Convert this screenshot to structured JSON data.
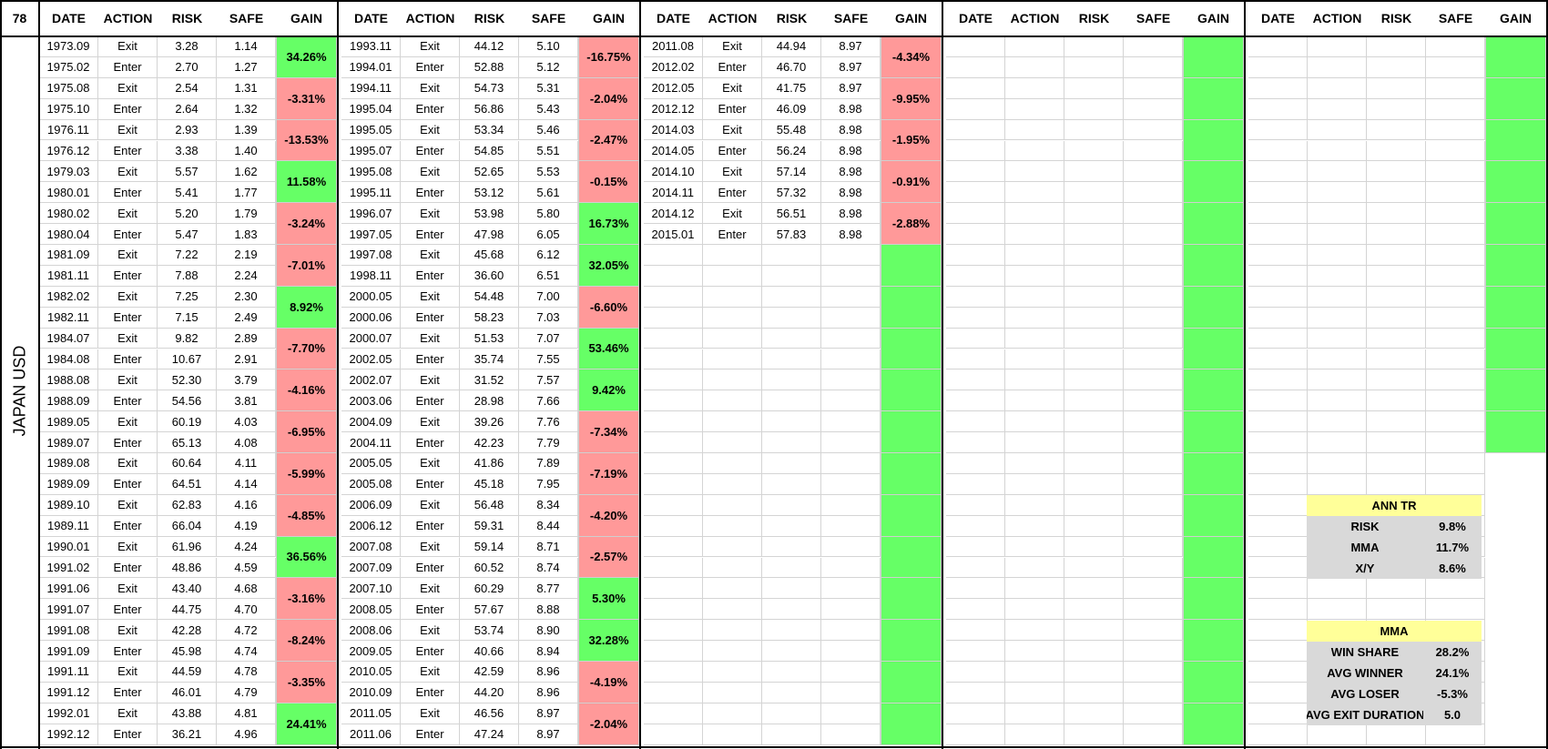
{
  "corner_label": "78",
  "side_label": "JAPAN USD",
  "headers": [
    "DATE",
    "ACTION",
    "RISK",
    "SAFE",
    "GAIN"
  ],
  "colors": {
    "win": "#66ff66",
    "loss": "#ff9999",
    "title_bg": "#ffff99",
    "stat_bg": "#d9d9d9"
  },
  "blocks": [
    {
      "rows": [
        [
          "1973.09",
          "Exit",
          "3.28",
          "1.14"
        ],
        [
          "1975.02",
          "Enter",
          "2.70",
          "1.27"
        ],
        [
          "1975.08",
          "Exit",
          "2.54",
          "1.31"
        ],
        [
          "1975.10",
          "Enter",
          "2.64",
          "1.32"
        ],
        [
          "1976.11",
          "Exit",
          "2.93",
          "1.39"
        ],
        [
          "1976.12",
          "Enter",
          "3.38",
          "1.40"
        ],
        [
          "1979.03",
          "Exit",
          "5.57",
          "1.62"
        ],
        [
          "1980.01",
          "Enter",
          "5.41",
          "1.77"
        ],
        [
          "1980.02",
          "Exit",
          "5.20",
          "1.79"
        ],
        [
          "1980.04",
          "Enter",
          "5.47",
          "1.83"
        ],
        [
          "1981.09",
          "Exit",
          "7.22",
          "2.19"
        ],
        [
          "1981.11",
          "Enter",
          "7.88",
          "2.24"
        ],
        [
          "1982.02",
          "Exit",
          "7.25",
          "2.30"
        ],
        [
          "1982.11",
          "Enter",
          "7.15",
          "2.49"
        ],
        [
          "1984.07",
          "Exit",
          "9.82",
          "2.89"
        ],
        [
          "1984.08",
          "Enter",
          "10.67",
          "2.91"
        ],
        [
          "1988.08",
          "Exit",
          "52.30",
          "3.79"
        ],
        [
          "1988.09",
          "Enter",
          "54.56",
          "3.81"
        ],
        [
          "1989.05",
          "Exit",
          "60.19",
          "4.03"
        ],
        [
          "1989.07",
          "Enter",
          "65.13",
          "4.08"
        ],
        [
          "1989.08",
          "Exit",
          "60.64",
          "4.11"
        ],
        [
          "1989.09",
          "Enter",
          "64.51",
          "4.14"
        ],
        [
          "1989.10",
          "Exit",
          "62.83",
          "4.16"
        ],
        [
          "1989.11",
          "Enter",
          "66.04",
          "4.19"
        ],
        [
          "1990.01",
          "Exit",
          "61.96",
          "4.24"
        ],
        [
          "1991.02",
          "Enter",
          "48.86",
          "4.59"
        ],
        [
          "1991.06",
          "Exit",
          "43.40",
          "4.68"
        ],
        [
          "1991.07",
          "Enter",
          "44.75",
          "4.70"
        ],
        [
          "1991.08",
          "Exit",
          "42.28",
          "4.72"
        ],
        [
          "1991.09",
          "Enter",
          "45.98",
          "4.74"
        ],
        [
          "1991.11",
          "Exit",
          "44.59",
          "4.78"
        ],
        [
          "1991.12",
          "Enter",
          "46.01",
          "4.79"
        ],
        [
          "1992.01",
          "Exit",
          "43.88",
          "4.81"
        ],
        [
          "1992.12",
          "Enter",
          "36.21",
          "4.96"
        ]
      ],
      "gains": [
        {
          "text": "34.26%",
          "win": true
        },
        {
          "text": "-3.31%",
          "win": false
        },
        {
          "text": "-13.53%",
          "win": false
        },
        {
          "text": "11.58%",
          "win": true
        },
        {
          "text": "-3.24%",
          "win": false
        },
        {
          "text": "-7.01%",
          "win": false
        },
        {
          "text": "8.92%",
          "win": true
        },
        {
          "text": "-7.70%",
          "win": false
        },
        {
          "text": "-4.16%",
          "win": false
        },
        {
          "text": "-6.95%",
          "win": false
        },
        {
          "text": "-5.99%",
          "win": false
        },
        {
          "text": "-4.85%",
          "win": false
        },
        {
          "text": "36.56%",
          "win": true
        },
        {
          "text": "-3.16%",
          "win": false
        },
        {
          "text": "-8.24%",
          "win": false
        },
        {
          "text": "-3.35%",
          "win": false
        },
        {
          "text": "24.41%",
          "win": true
        }
      ]
    },
    {
      "rows": [
        [
          "1993.11",
          "Exit",
          "44.12",
          "5.10"
        ],
        [
          "1994.01",
          "Enter",
          "52.88",
          "5.12"
        ],
        [
          "1994.11",
          "Exit",
          "54.73",
          "5.31"
        ],
        [
          "1995.04",
          "Enter",
          "56.86",
          "5.43"
        ],
        [
          "1995.05",
          "Exit",
          "53.34",
          "5.46"
        ],
        [
          "1995.07",
          "Enter",
          "54.85",
          "5.51"
        ],
        [
          "1995.08",
          "Exit",
          "52.65",
          "5.53"
        ],
        [
          "1995.11",
          "Enter",
          "53.12",
          "5.61"
        ],
        [
          "1996.07",
          "Exit",
          "53.98",
          "5.80"
        ],
        [
          "1997.05",
          "Enter",
          "47.98",
          "6.05"
        ],
        [
          "1997.08",
          "Exit",
          "45.68",
          "6.12"
        ],
        [
          "1998.11",
          "Enter",
          "36.60",
          "6.51"
        ],
        [
          "2000.05",
          "Exit",
          "54.48",
          "7.00"
        ],
        [
          "2000.06",
          "Enter",
          "58.23",
          "7.03"
        ],
        [
          "2000.07",
          "Exit",
          "51.53",
          "7.07"
        ],
        [
          "2002.05",
          "Enter",
          "35.74",
          "7.55"
        ],
        [
          "2002.07",
          "Exit",
          "31.52",
          "7.57"
        ],
        [
          "2003.06",
          "Enter",
          "28.98",
          "7.66"
        ],
        [
          "2004.09",
          "Exit",
          "39.26",
          "7.76"
        ],
        [
          "2004.11",
          "Enter",
          "42.23",
          "7.79"
        ],
        [
          "2005.05",
          "Exit",
          "41.86",
          "7.89"
        ],
        [
          "2005.08",
          "Enter",
          "45.18",
          "7.95"
        ],
        [
          "2006.09",
          "Exit",
          "56.48",
          "8.34"
        ],
        [
          "2006.12",
          "Enter",
          "59.31",
          "8.44"
        ],
        [
          "2007.08",
          "Exit",
          "59.14",
          "8.71"
        ],
        [
          "2007.09",
          "Enter",
          "60.52",
          "8.74"
        ],
        [
          "2007.10",
          "Exit",
          "60.29",
          "8.77"
        ],
        [
          "2008.05",
          "Enter",
          "57.67",
          "8.88"
        ],
        [
          "2008.06",
          "Exit",
          "53.74",
          "8.90"
        ],
        [
          "2009.05",
          "Enter",
          "40.66",
          "8.94"
        ],
        [
          "2010.05",
          "Exit",
          "42.59",
          "8.96"
        ],
        [
          "2010.09",
          "Enter",
          "44.20",
          "8.96"
        ],
        [
          "2011.05",
          "Exit",
          "46.56",
          "8.97"
        ],
        [
          "2011.06",
          "Enter",
          "47.24",
          "8.97"
        ]
      ],
      "gains": [
        {
          "text": "-16.75%",
          "win": false
        },
        {
          "text": "-2.04%",
          "win": false
        },
        {
          "text": "-2.47%",
          "win": false
        },
        {
          "text": "-0.15%",
          "win": false
        },
        {
          "text": "16.73%",
          "win": true
        },
        {
          "text": "32.05%",
          "win": true
        },
        {
          "text": "-6.60%",
          "win": false
        },
        {
          "text": "53.46%",
          "win": true
        },
        {
          "text": "9.42%",
          "win": true
        },
        {
          "text": "-7.34%",
          "win": false
        },
        {
          "text": "-7.19%",
          "win": false
        },
        {
          "text": "-4.20%",
          "win": false
        },
        {
          "text": "-2.57%",
          "win": false
        },
        {
          "text": "5.30%",
          "win": true
        },
        {
          "text": "32.28%",
          "win": true
        },
        {
          "text": "-4.19%",
          "win": false
        },
        {
          "text": "-2.04%",
          "win": false
        }
      ]
    },
    {
      "rows": [
        [
          "2011.08",
          "Exit",
          "44.94",
          "8.97"
        ],
        [
          "2012.02",
          "Enter",
          "46.70",
          "8.97"
        ],
        [
          "2012.05",
          "Exit",
          "41.75",
          "8.97"
        ],
        [
          "2012.12",
          "Enter",
          "46.09",
          "8.98"
        ],
        [
          "2014.03",
          "Exit",
          "55.48",
          "8.98"
        ],
        [
          "2014.05",
          "Enter",
          "56.24",
          "8.98"
        ],
        [
          "2014.10",
          "Exit",
          "57.14",
          "8.98"
        ],
        [
          "2014.11",
          "Enter",
          "57.32",
          "8.98"
        ],
        [
          "2014.12",
          "Exit",
          "56.51",
          "8.98"
        ],
        [
          "2015.01",
          "Enter",
          "57.83",
          "8.98"
        ]
      ],
      "gains": [
        {
          "text": "-4.34%",
          "win": false
        },
        {
          "text": "-9.95%",
          "win": false
        },
        {
          "text": "-1.95%",
          "win": false
        },
        {
          "text": "-0.91%",
          "win": false
        },
        {
          "text": "-2.88%",
          "win": false
        },
        {
          "text": "",
          "win": true
        },
        {
          "text": "",
          "win": true
        },
        {
          "text": "",
          "win": true
        },
        {
          "text": "",
          "win": true
        },
        {
          "text": "",
          "win": true
        },
        {
          "text": "",
          "win": true
        },
        {
          "text": "",
          "win": true
        },
        {
          "text": "",
          "win": true
        },
        {
          "text": "",
          "win": true
        },
        {
          "text": "",
          "win": true
        },
        {
          "text": "",
          "win": true
        },
        {
          "text": "",
          "win": true
        }
      ]
    },
    {
      "rows": [],
      "gains": [
        {
          "text": "",
          "win": true
        },
        {
          "text": "",
          "win": true
        },
        {
          "text": "",
          "win": true
        },
        {
          "text": "",
          "win": true
        },
        {
          "text": "",
          "win": true
        },
        {
          "text": "",
          "win": true
        },
        {
          "text": "",
          "win": true
        },
        {
          "text": "",
          "win": true
        },
        {
          "text": "",
          "win": true
        },
        {
          "text": "",
          "win": true
        },
        {
          "text": "",
          "win": true
        },
        {
          "text": "",
          "win": true
        },
        {
          "text": "",
          "win": true
        },
        {
          "text": "",
          "win": true
        },
        {
          "text": "",
          "win": true
        },
        {
          "text": "",
          "win": true
        },
        {
          "text": "",
          "win": true
        }
      ]
    },
    {
      "rows": [],
      "gains": [
        {
          "text": "",
          "win": true
        },
        {
          "text": "",
          "win": true
        },
        {
          "text": "",
          "win": true
        },
        {
          "text": "",
          "win": true
        },
        {
          "text": "",
          "win": true
        },
        {
          "text": "",
          "win": true
        },
        {
          "text": "",
          "win": true
        },
        {
          "text": "",
          "win": true
        },
        {
          "text": "",
          "win": true
        },
        {
          "text": "",
          "win": true
        }
      ]
    }
  ],
  "ann_tr": {
    "title": "ANN TR",
    "rows": [
      {
        "label": "RISK",
        "value": "9.8%"
      },
      {
        "label": "MMA",
        "value": "11.7%"
      },
      {
        "label": "X/Y",
        "value": "8.6%"
      }
    ]
  },
  "mma": {
    "title": "MMA",
    "rows": [
      {
        "label": "WIN SHARE",
        "value": "28.2%"
      },
      {
        "label": "AVG WINNER",
        "value": "24.1%"
      },
      {
        "label": "AVG LOSER",
        "value": "-5.3%"
      },
      {
        "label": "AVG EXIT DURATION",
        "value": "5.0"
      }
    ]
  }
}
